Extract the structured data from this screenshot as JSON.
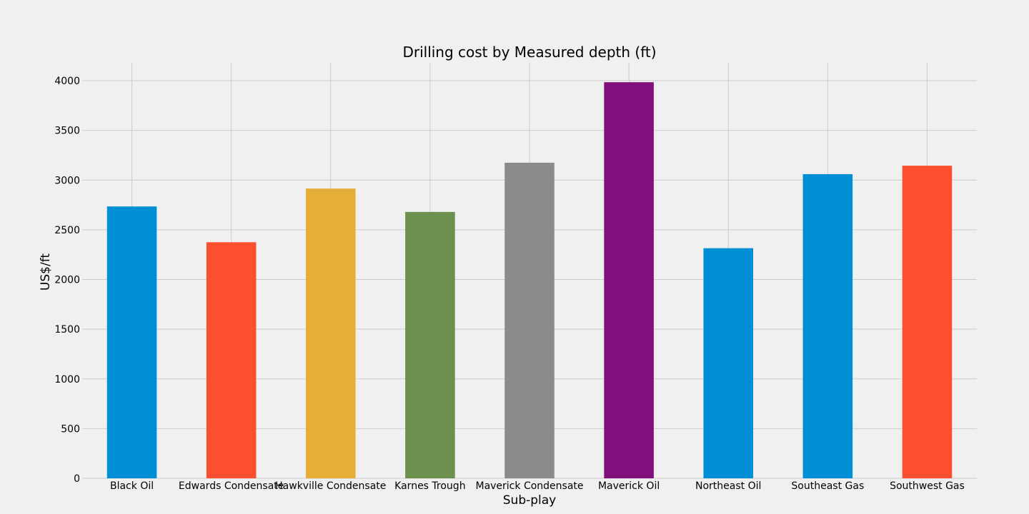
{
  "chart_data": {
    "type": "bar",
    "title": "Drilling cost by Measured depth (ft)",
    "xlabel": "Sub-play",
    "ylabel": "US$/ft",
    "categories": [
      "Black Oil",
      "Edwards Condensate",
      "Hawkville Condensate",
      "Karnes Trough",
      "Maverick Condensate",
      "Maverick Oil",
      "Northeast Oil",
      "Southeast Gas",
      "Southwest Gas"
    ],
    "values": [
      2735,
      2375,
      2915,
      2680,
      3175,
      3985,
      2315,
      3060,
      3145
    ],
    "colors": [
      "#008fd5",
      "#fc4f30",
      "#e5ae38",
      "#6d904f",
      "#8b8b8b",
      "#810f7c",
      "#008fd5",
      "#008fd5",
      "#fc4f30"
    ],
    "ylim": [
      0,
      4180
    ],
    "yticks": [
      "0",
      "500",
      "1000",
      "1500",
      "2000",
      "2500",
      "3000",
      "3500",
      "4000"
    ],
    "grid": true,
    "legend": "none",
    "background": "#f0f0f0"
  }
}
